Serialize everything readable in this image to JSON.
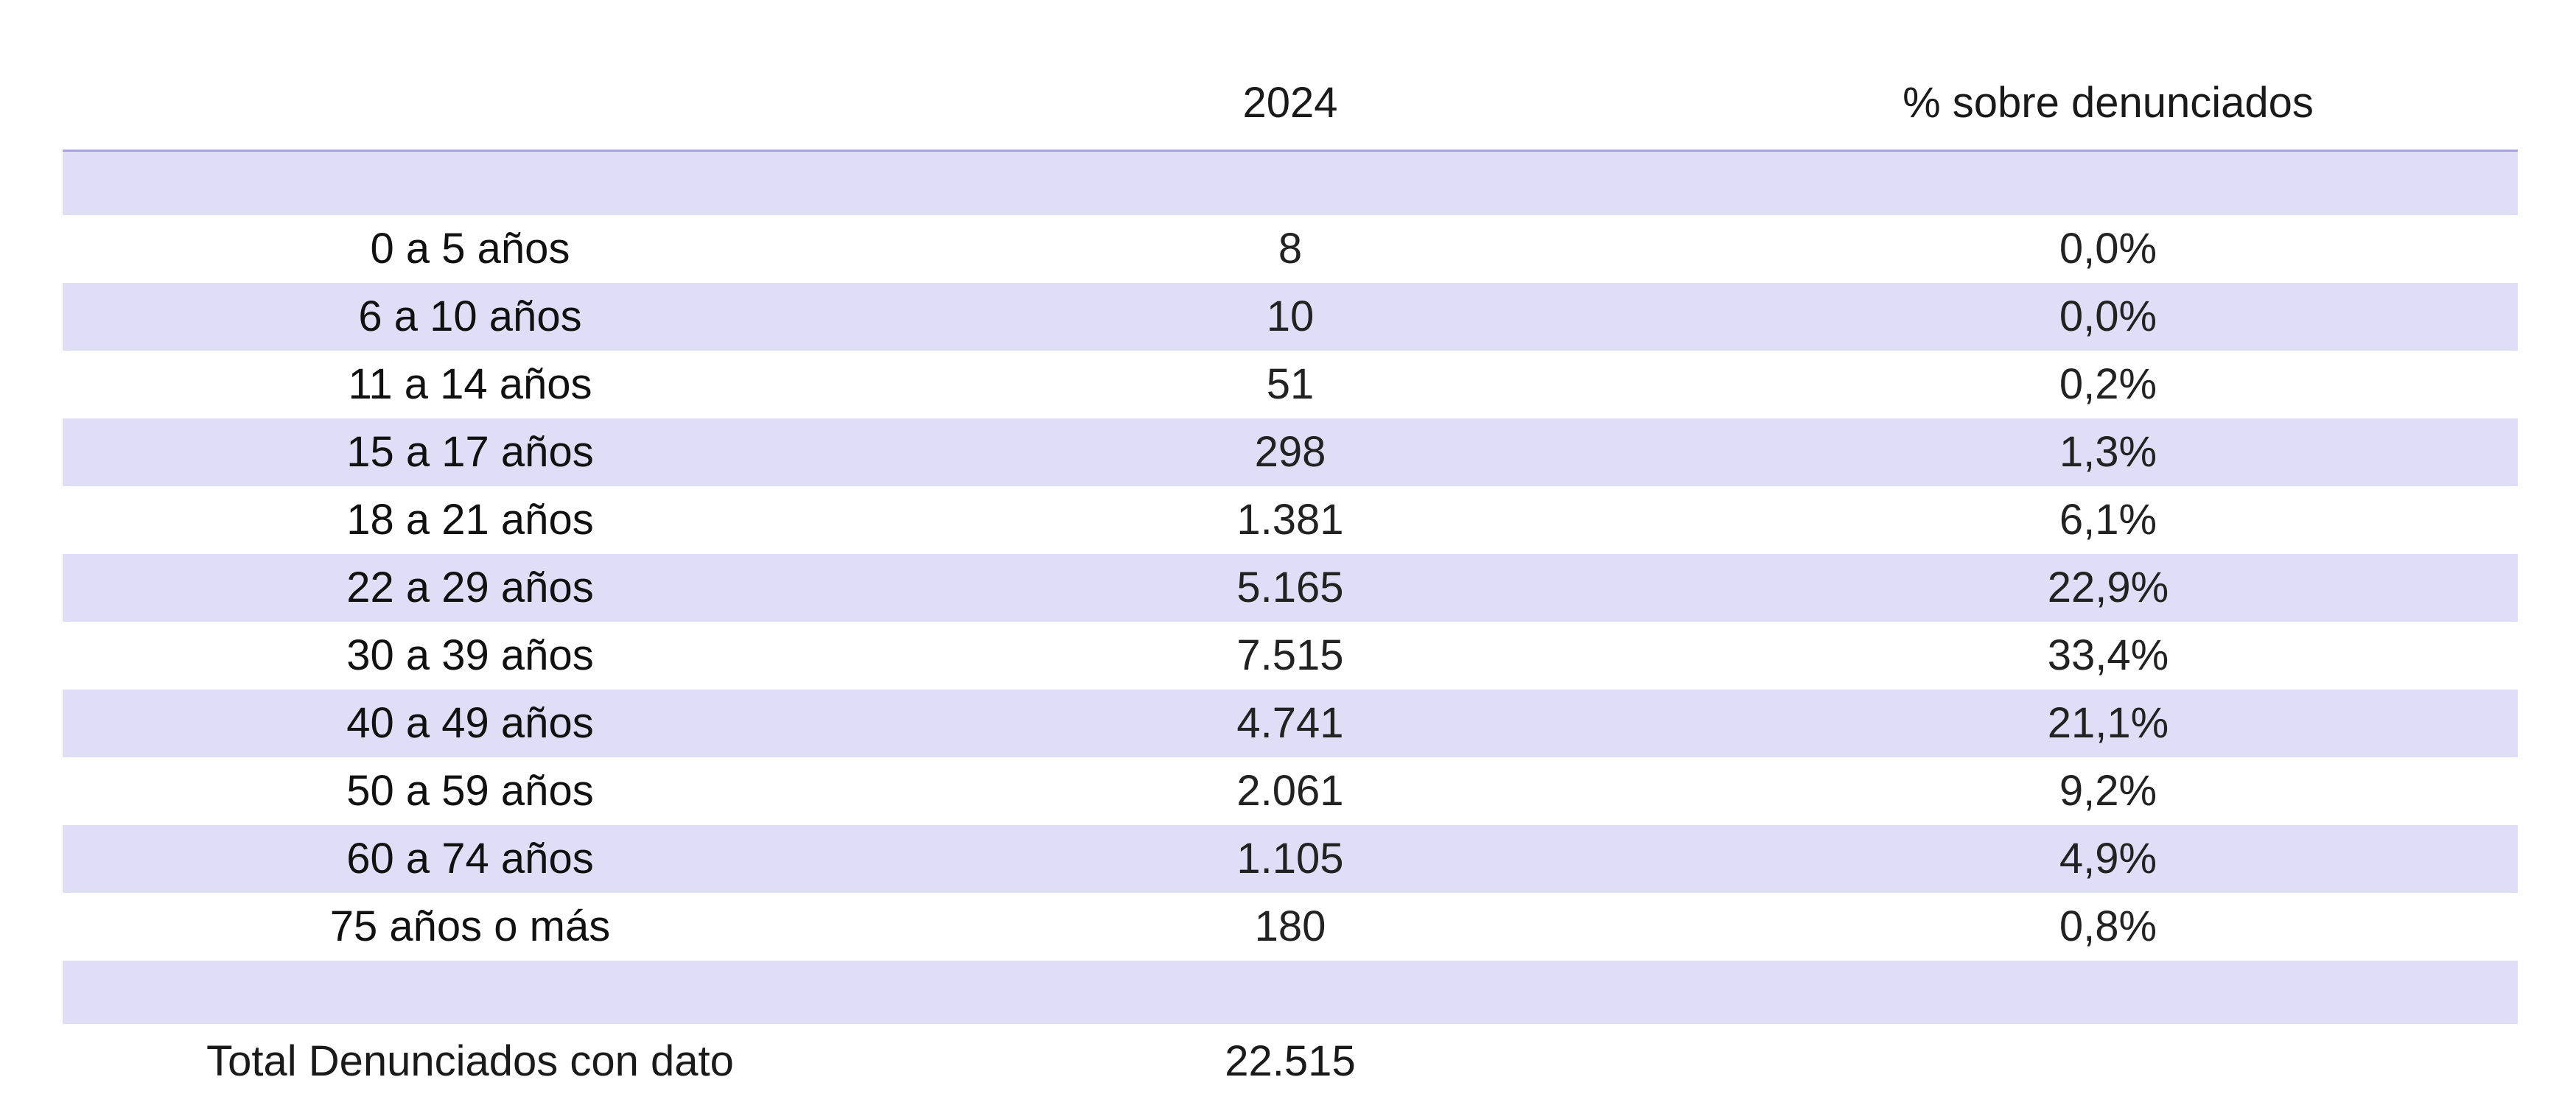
{
  "header": {
    "col_label": "",
    "col_year": "2024",
    "col_pct": "% sobre denunciados"
  },
  "rows": [
    {
      "label": "0 a 5 años",
      "value": "8",
      "pct": "0,0%"
    },
    {
      "label": "6 a 10 años",
      "value": "10",
      "pct": "0,0%"
    },
    {
      "label": "11 a 14 años",
      "value": "51",
      "pct": "0,2%"
    },
    {
      "label": "15 a 17 años",
      "value": "298",
      "pct": "1,3%"
    },
    {
      "label": "18 a 21 años",
      "value": "1.381",
      "pct": "6,1%"
    },
    {
      "label": "22 a 29 años",
      "value": "5.165",
      "pct": "22,9%"
    },
    {
      "label": "30 a 39 años",
      "value": "7.515",
      "pct": "33,4%"
    },
    {
      "label": "40 a 49 años",
      "value": "4.741",
      "pct": "21,1%"
    },
    {
      "label": "50 a 59 años",
      "value": "2.061",
      "pct": "9,2%"
    },
    {
      "label": "60 a 74 años",
      "value": "1.105",
      "pct": "4,9%"
    },
    {
      "label": "75 años o más",
      "value": "180",
      "pct": "0,8%"
    }
  ],
  "total": {
    "label": "Total Denunciados con dato",
    "value": "22.515"
  },
  "colors": {
    "shade": "#e0ddf6",
    "header_rule": "#a9a3e6"
  }
}
